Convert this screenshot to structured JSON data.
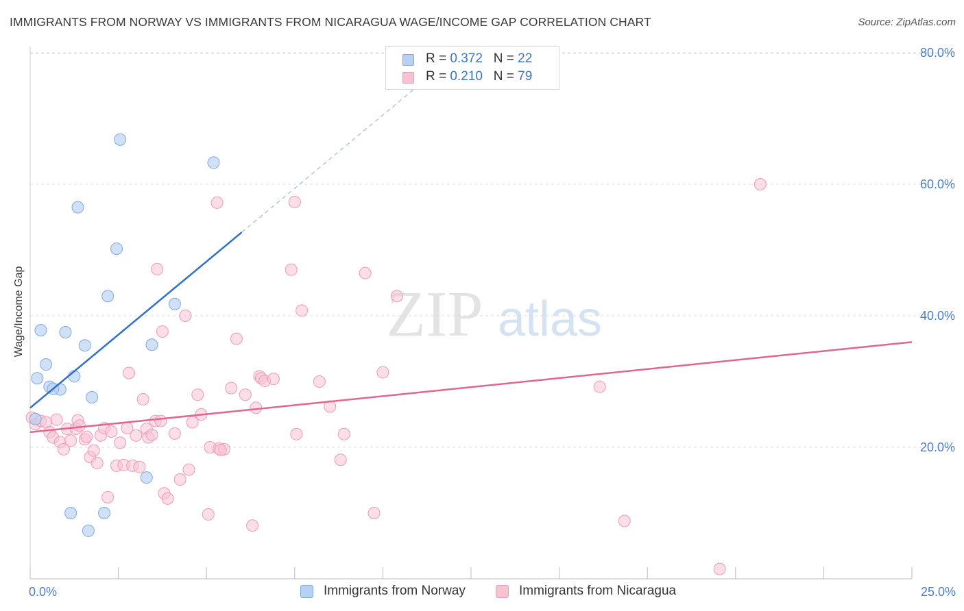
{
  "title": "IMMIGRANTS FROM NORWAY VS IMMIGRANTS FROM NICARAGUA WAGE/INCOME GAP CORRELATION CHART",
  "source": "Source: ZipAtlas.com",
  "watermark": {
    "zip": "ZIP",
    "atlas": "atlas"
  },
  "legend": {
    "rows": [
      {
        "r_label": "R = ",
        "r_value": "0.372",
        "n_label": "N = ",
        "n_value": "22"
      },
      {
        "r_label": "R = ",
        "r_value": "0.210",
        "n_label": "N = ",
        "n_value": "79"
      }
    ]
  },
  "colors": {
    "norway_fill": "#b7d1f3",
    "norway_stroke": "#7ea9de",
    "norway_line": "#2f6fcb",
    "nicaragua_fill": "#f7c3d3",
    "nicaragua_stroke": "#ec9bb6",
    "nicaragua_line": "#e0668f",
    "grid": "#dddddd",
    "axis_tick_text": "#4a7fc1"
  },
  "chart_data": {
    "type": "scatter",
    "title": "IMMIGRANTS FROM NORWAY VS IMMIGRANTS FROM NICARAGUA WAGE/INCOME GAP CORRELATION CHART",
    "xlabel": "",
    "ylabel": "Wage/Income Gap",
    "xlim": [
      0,
      25
    ],
    "ylim": [
      0,
      82
    ],
    "x_tick_labels": [
      {
        "value": 0,
        "label": "0.0%"
      },
      {
        "value": 25,
        "label": "25.0%"
      }
    ],
    "y_tick_labels": [
      {
        "value": 20,
        "label": "20.0%"
      },
      {
        "value": 40,
        "label": "40.0%"
      },
      {
        "value": 60,
        "label": "60.0%"
      },
      {
        "value": 80,
        "label": "80.0%"
      }
    ],
    "x_minor_ticks": [
      0,
      2.5,
      5,
      7.5,
      10,
      12.5,
      15,
      17.5,
      20,
      22.5,
      25
    ],
    "grid": true,
    "legend_position": "top-center",
    "series": [
      {
        "name": "Immigrants from Norway",
        "R": 0.372,
        "N": 22,
        "points": [
          [
            0.2,
            30.5
          ],
          [
            0.3,
            37.8
          ],
          [
            0.45,
            32.6
          ],
          [
            0.55,
            29.2
          ],
          [
            0.85,
            28.8
          ],
          [
            1.0,
            37.5
          ],
          [
            1.25,
            30.8
          ],
          [
            1.55,
            35.5
          ],
          [
            1.75,
            27.6
          ],
          [
            1.35,
            56.5
          ],
          [
            2.2,
            43.0
          ],
          [
            2.45,
            50.2
          ],
          [
            2.55,
            66.8
          ],
          [
            3.45,
            35.6
          ],
          [
            4.1,
            41.8
          ],
          [
            5.2,
            63.3
          ],
          [
            3.3,
            15.4
          ],
          [
            1.15,
            10.0
          ],
          [
            1.65,
            7.3
          ],
          [
            2.1,
            10.0
          ],
          [
            0.15,
            24.3
          ],
          [
            0.65,
            28.9
          ]
        ],
        "trend": {
          "x": [
            0,
            6.0
          ],
          "y": [
            26.0,
            52.7
          ]
        },
        "trend_extension": {
          "x": [
            6.0,
            11.9
          ],
          "y": [
            52.7,
            79.0
          ]
        }
      },
      {
        "name": "Immigrants from Nicaragua",
        "R": 0.21,
        "N": 79,
        "points": [
          [
            0.05,
            24.5
          ],
          [
            0.15,
            23.5
          ],
          [
            0.3,
            24.0
          ],
          [
            0.45,
            23.8
          ],
          [
            0.55,
            22.3
          ],
          [
            0.65,
            21.5
          ],
          [
            0.75,
            24.2
          ],
          [
            0.85,
            20.8
          ],
          [
            0.95,
            19.7
          ],
          [
            1.05,
            22.8
          ],
          [
            1.15,
            21.0
          ],
          [
            1.3,
            22.8
          ],
          [
            1.35,
            24.1
          ],
          [
            1.4,
            23.3
          ],
          [
            1.55,
            21.2
          ],
          [
            1.6,
            21.6
          ],
          [
            1.7,
            18.5
          ],
          [
            1.8,
            19.5
          ],
          [
            1.9,
            17.6
          ],
          [
            2.0,
            21.8
          ],
          [
            2.1,
            22.9
          ],
          [
            2.2,
            12.4
          ],
          [
            2.3,
            22.4
          ],
          [
            2.45,
            17.2
          ],
          [
            2.55,
            20.7
          ],
          [
            2.65,
            17.3
          ],
          [
            2.75,
            22.9
          ],
          [
            2.8,
            31.3
          ],
          [
            2.9,
            17.2
          ],
          [
            3.0,
            21.8
          ],
          [
            3.1,
            17.0
          ],
          [
            3.2,
            27.3
          ],
          [
            3.3,
            22.8
          ],
          [
            3.35,
            21.5
          ],
          [
            3.45,
            21.9
          ],
          [
            3.55,
            24.0
          ],
          [
            3.6,
            47.1
          ],
          [
            3.7,
            24.0
          ],
          [
            3.75,
            37.6
          ],
          [
            3.8,
            13.0
          ],
          [
            3.9,
            12.2
          ],
          [
            4.1,
            22.1
          ],
          [
            4.25,
            15.1
          ],
          [
            4.4,
            40.0
          ],
          [
            4.5,
            16.6
          ],
          [
            4.6,
            23.8
          ],
          [
            4.75,
            28.0
          ],
          [
            4.85,
            25.0
          ],
          [
            5.05,
            9.8
          ],
          [
            5.1,
            20.0
          ],
          [
            5.3,
            57.2
          ],
          [
            5.35,
            19.8
          ],
          [
            5.5,
            19.7
          ],
          [
            5.7,
            29.0
          ],
          [
            5.85,
            36.5
          ],
          [
            6.1,
            28.0
          ],
          [
            6.3,
            8.1
          ],
          [
            6.4,
            26.0
          ],
          [
            6.5,
            30.8
          ],
          [
            6.55,
            30.5
          ],
          [
            6.65,
            30.1
          ],
          [
            7.4,
            47.0
          ],
          [
            7.5,
            57.3
          ],
          [
            7.55,
            22.0
          ],
          [
            7.7,
            40.8
          ],
          [
            8.2,
            30.0
          ],
          [
            8.5,
            26.2
          ],
          [
            8.8,
            18.1
          ],
          [
            8.9,
            22.0
          ],
          [
            9.5,
            46.5
          ],
          [
            9.75,
            10.0
          ],
          [
            10.0,
            31.4
          ],
          [
            10.4,
            43.0
          ],
          [
            16.15,
            29.2
          ],
          [
            16.85,
            8.8
          ],
          [
            19.55,
            1.5
          ],
          [
            20.7,
            60.0
          ],
          [
            5.4,
            19.6
          ],
          [
            6.9,
            30.4
          ]
        ],
        "trend": {
          "x": [
            0,
            25
          ],
          "y": [
            22.3,
            36.0
          ]
        }
      }
    ]
  }
}
